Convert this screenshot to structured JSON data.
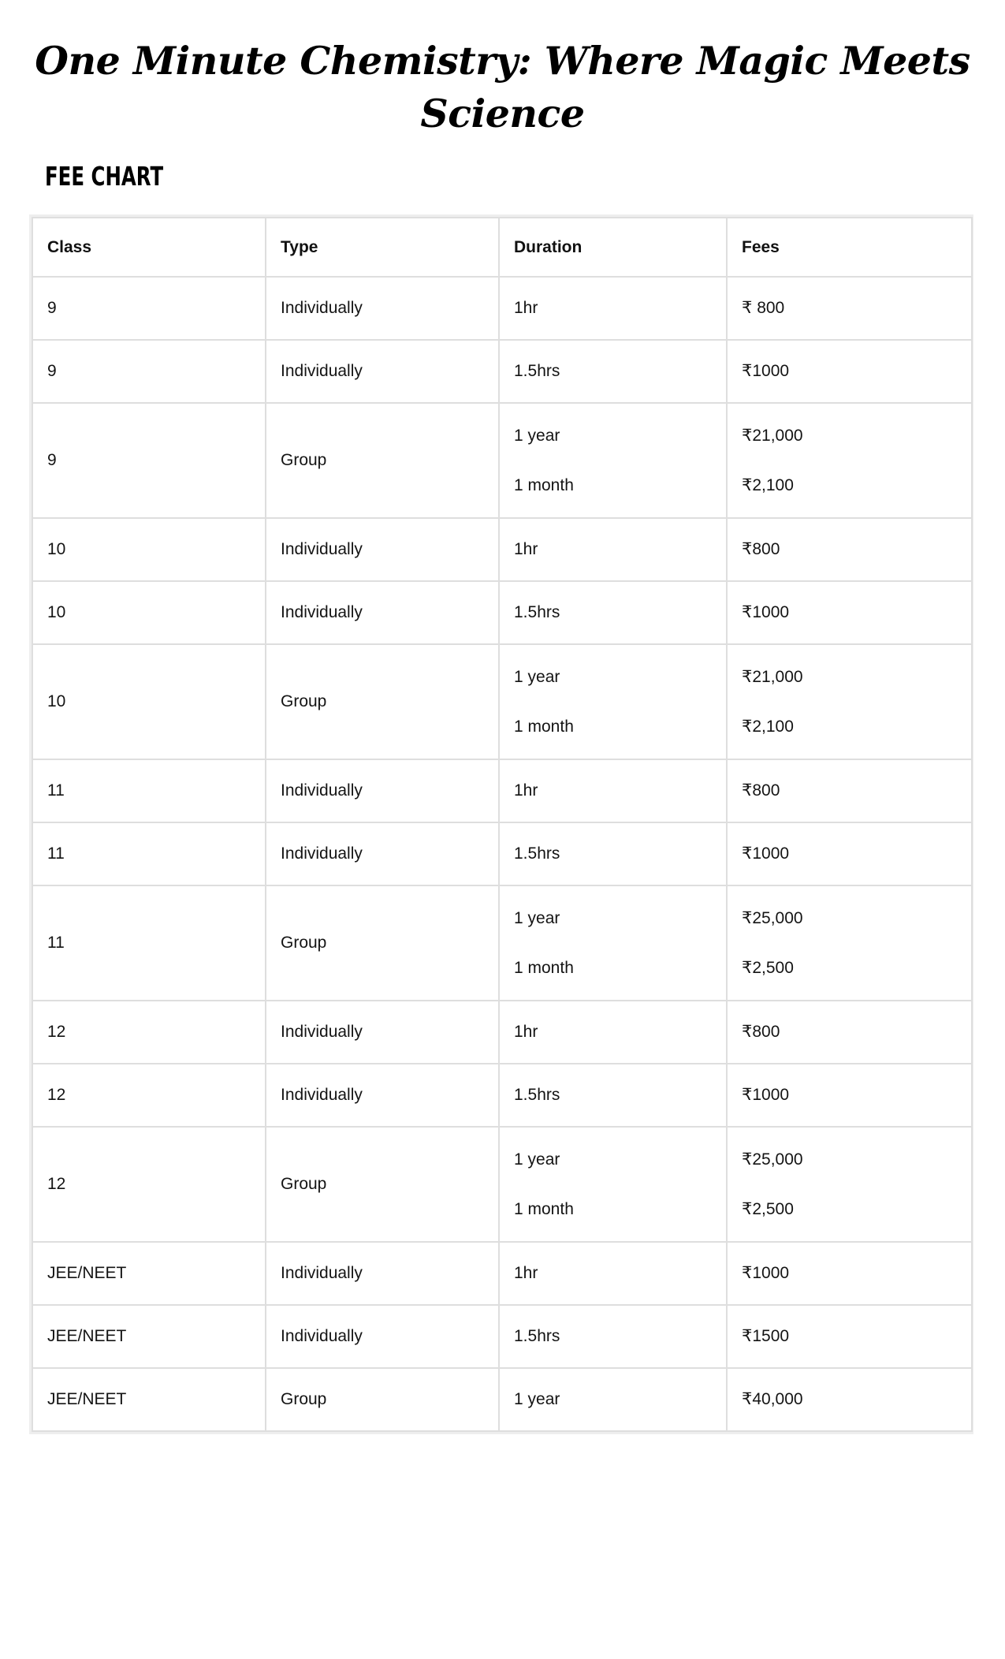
{
  "page": {
    "title_lines": [
      "One Minute Chemistry: Where Magic Meets",
      "Science"
    ],
    "section_heading": "FEE CHART"
  },
  "table": {
    "headers": [
      "Class",
      "Type",
      "Duration",
      "Fees"
    ],
    "rows": [
      {
        "class": "9",
        "type": "Individually",
        "duration": [
          "1hr"
        ],
        "fees": [
          "₹ 800"
        ]
      },
      {
        "class": "9",
        "type": "Individually",
        "duration": [
          "1.5hrs"
        ],
        "fees": [
          "₹1000"
        ]
      },
      {
        "class": "9",
        "type": "Group",
        "duration": [
          "1 year",
          "1 month"
        ],
        "fees": [
          "₹21,000",
          "₹2,100"
        ]
      },
      {
        "class": "10",
        "type": "Individually",
        "duration": [
          "1hr"
        ],
        "fees": [
          "₹800"
        ]
      },
      {
        "class": "10",
        "type": "Individually",
        "duration": [
          "1.5hrs"
        ],
        "fees": [
          "₹1000"
        ]
      },
      {
        "class": "10",
        "type": "Group",
        "duration": [
          "1 year",
          "1 month"
        ],
        "fees": [
          "₹21,000",
          "₹2,100"
        ]
      },
      {
        "class": "11",
        "type": "Individually",
        "duration": [
          "1hr"
        ],
        "fees": [
          "₹800"
        ]
      },
      {
        "class": "11",
        "type": "Individually",
        "duration": [
          "1.5hrs"
        ],
        "fees": [
          "₹1000"
        ]
      },
      {
        "class": "11",
        "type": "Group",
        "duration": [
          "1 year",
          "1 month"
        ],
        "fees": [
          "₹25,000",
          "₹2,500"
        ]
      },
      {
        "class": "12",
        "type": "Individually",
        "duration": [
          "1hr"
        ],
        "fees": [
          "₹800"
        ]
      },
      {
        "class": "12",
        "type": "Individually",
        "duration": [
          "1.5hrs"
        ],
        "fees": [
          "₹1000"
        ]
      },
      {
        "class": "12",
        "type": "Group",
        "duration": [
          "1 year",
          "1 month"
        ],
        "fees": [
          "₹25,000",
          "₹2,500"
        ]
      },
      {
        "class": "JEE/NEET",
        "type": "Individually",
        "duration": [
          "1hr"
        ],
        "fees": [
          "₹1000"
        ]
      },
      {
        "class": "JEE/NEET",
        "type": "Individually",
        "duration": [
          "1.5hrs"
        ],
        "fees": [
          "₹1500"
        ]
      },
      {
        "class": "JEE/NEET",
        "type": "Group",
        "duration": [
          "1 year"
        ],
        "fees": [
          "₹40,000"
        ]
      }
    ]
  }
}
